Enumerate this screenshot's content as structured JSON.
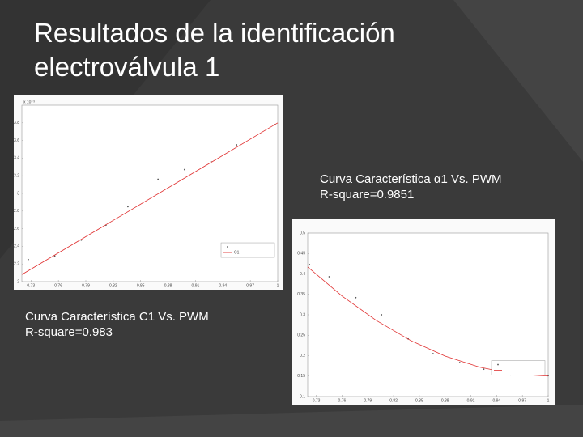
{
  "title": "Resultados de la identificación electroválvula 1",
  "captions": [
    {
      "lines": [
        "Curva Característica α1  Vs. PWM",
        "R-square=0.9851"
      ]
    },
    {
      "lines": [
        "Curva Característica  C1 Vs. PWM",
        "R-square=0.983"
      ]
    }
  ],
  "chart_data": [
    {
      "type": "scatter",
      "y_exponent_label": "x 10⁻³",
      "xlim": [
        0.72,
        1
      ],
      "ylim": [
        2,
        4
      ],
      "xticks": [
        0.73,
        0.76,
        0.79,
        0.82,
        0.85,
        0.88,
        0.91,
        0.94,
        0.97,
        1
      ],
      "yticks": [
        2,
        2.2,
        2.4,
        2.6,
        2.8,
        3,
        3.2,
        3.4,
        3.6,
        3.8
      ],
      "series": [
        {
          "mode": "markers",
          "color": "#555555",
          "x": [
            0.727,
            0.756,
            0.785,
            0.812,
            0.836,
            0.869,
            0.898,
            0.927,
            0.955,
            0.997
          ],
          "values": [
            2.25,
            2.29,
            2.47,
            2.64,
            2.85,
            3.16,
            3.27,
            3.36,
            3.55,
            3.78
          ]
        },
        {
          "mode": "line",
          "name": "C1",
          "color": "#e03030",
          "x": [
            0.72,
            1
          ],
          "values": [
            2.08,
            3.8
          ]
        }
      ]
    },
    {
      "type": "scatter",
      "xlim": [
        0.72,
        1
      ],
      "ylim": [
        0.1,
        0.5
      ],
      "xticks": [
        0.73,
        0.76,
        0.79,
        0.82,
        0.85,
        0.88,
        0.91,
        0.94,
        0.97,
        1
      ],
      "yticks": [
        0.1,
        0.15,
        0.2,
        0.25,
        0.3,
        0.35,
        0.4,
        0.45,
        0.5
      ],
      "series": [
        {
          "mode": "markers",
          "color": "#555555",
          "x": [
            0.722,
            0.745,
            0.776,
            0.806,
            0.837,
            0.866,
            0.897,
            0.925,
            0.956,
            1
          ],
          "values": [
            0.423,
            0.393,
            0.342,
            0.3,
            0.241,
            0.205,
            0.183,
            0.167,
            0.153,
            0.151
          ]
        },
        {
          "mode": "line",
          "color": "#e03030",
          "x": [
            0.72,
            0.76,
            0.8,
            0.84,
            0.88,
            0.92,
            0.96,
            1
          ],
          "values": [
            0.417,
            0.346,
            0.286,
            0.237,
            0.199,
            0.172,
            0.155,
            0.15
          ]
        }
      ]
    }
  ]
}
